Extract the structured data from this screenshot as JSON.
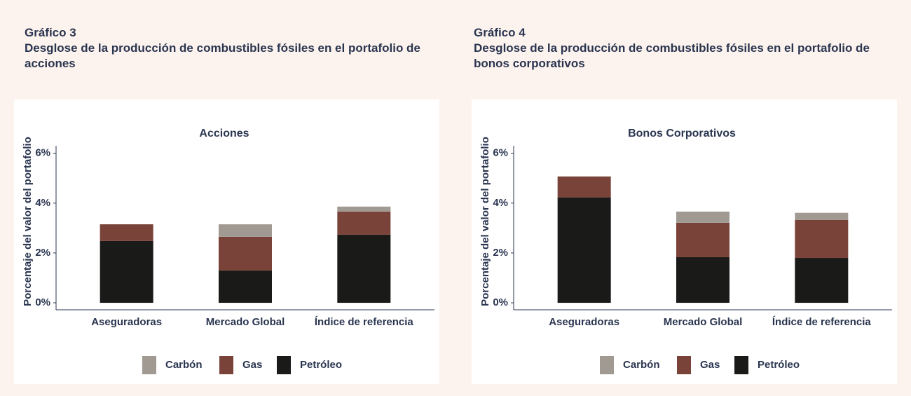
{
  "chart_data": [
    {
      "type": "stacked_bar",
      "label": "Gráfico 3",
      "heading": "Desglose de la producción de combustibles fósiles en el portafolio de acciones",
      "title": "Acciones",
      "ylabel": "Porcentaje del valor del portafolio",
      "categories": [
        "Aseguradoras",
        "Mercado Global",
        "Índice de referencia"
      ],
      "series": [
        {
          "name": "Carbón",
          "color": "#a09a93",
          "values": [
            0,
            0.5,
            0.2
          ]
        },
        {
          "name": "Gas",
          "color": "#7a433a",
          "values": [
            0.67,
            1.35,
            0.93
          ]
        },
        {
          "name": "Petróleo",
          "color": "#1a1a18",
          "values": [
            2.48,
            1.3,
            2.73
          ]
        }
      ],
      "ylim": [
        -0.28,
        6.3
      ],
      "yticks": [
        {
          "value": 0,
          "label": "0%"
        },
        {
          "value": 2,
          "label": "2%"
        },
        {
          "value": 4,
          "label": "4%"
        },
        {
          "value": 6,
          "label": "6%"
        }
      ],
      "legend": "bottom"
    },
    {
      "type": "stacked_bar",
      "label": "Gráfico 4",
      "heading": "Desglose de la producción de combustibles fósiles en el portafolio de bonos corporativos",
      "title": "Bonos Corporativos",
      "ylabel": "Porcentaje del valor del portafolio",
      "categories": [
        "Aseguradoras",
        "Mercado Global",
        "Índice de referencia"
      ],
      "series": [
        {
          "name": "Carbón",
          "color": "#a09a93",
          "values": [
            0,
            0.45,
            0.29
          ]
        },
        {
          "name": "Gas",
          "color": "#7a433a",
          "values": [
            0.84,
            1.38,
            1.52
          ]
        },
        {
          "name": "Petróleo",
          "color": "#1a1a18",
          "values": [
            4.23,
            1.83,
            1.8
          ]
        }
      ],
      "ylim": [
        -0.28,
        6.3
      ],
      "yticks": [
        {
          "value": 0,
          "label": "0%"
        },
        {
          "value": 2,
          "label": "2%"
        },
        {
          "value": 4,
          "label": "4%"
        },
        {
          "value": 6,
          "label": "6%"
        }
      ],
      "legend": "bottom"
    }
  ]
}
